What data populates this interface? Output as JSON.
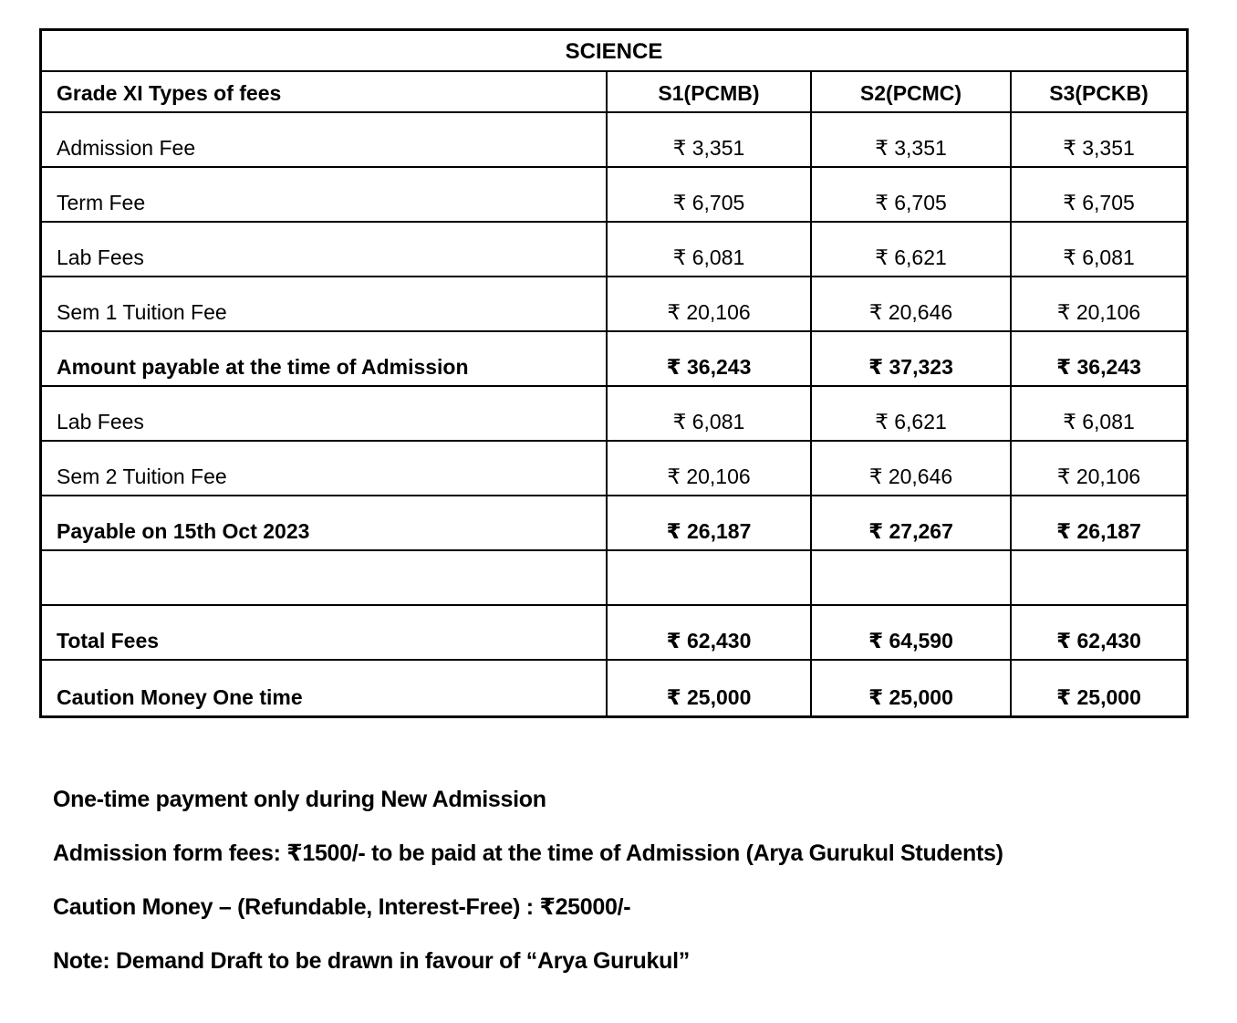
{
  "table": {
    "title": "SCIENCE",
    "columns": [
      "Grade XI Types of fees",
      "S1(PCMB)",
      "S2(PCMC)",
      "S3(PCKB)"
    ],
    "rows": [
      {
        "label": "Admission Fee",
        "values": [
          "₹ 3,351",
          "₹ 3,351",
          "₹ 3,351"
        ]
      },
      {
        "label": "Term Fee",
        "values": [
          "₹ 6,705",
          "₹ 6,705",
          "₹ 6,705"
        ]
      },
      {
        "label": "Lab Fees",
        "values": [
          "₹ 6,081",
          "₹ 6,621",
          "₹ 6,081"
        ]
      },
      {
        "label": "Sem 1 Tuition Fee",
        "values": [
          "₹ 20,106",
          "₹ 20,646",
          "₹ 20,106"
        ]
      },
      {
        "label": "Amount payable at the time of Admission",
        "values": [
          "₹ 36,243",
          "₹ 37,323",
          "₹ 36,243"
        ]
      },
      {
        "label": "Lab Fees",
        "values": [
          "₹ 6,081",
          "₹ 6,621",
          "₹ 6,081"
        ]
      },
      {
        "label": "Sem 2 Tuition Fee",
        "values": [
          "₹ 20,106",
          "₹ 20,646",
          "₹ 20,106"
        ]
      },
      {
        "label": "Payable on 15th Oct 2023",
        "values": [
          "₹ 26,187",
          "₹ 27,267",
          "₹ 26,187"
        ]
      },
      {
        "label": "",
        "values": [
          "",
          "",
          ""
        ]
      },
      {
        "label": "Total Fees",
        "values": [
          "₹ 62,430",
          "₹ 64,590",
          "₹ 62,430"
        ]
      },
      {
        "label": "Caution Money One time",
        "values": [
          "₹ 25,000",
          "₹ 25,000",
          "₹ 25,000"
        ]
      }
    ]
  },
  "notes": [
    "One-time payment only during New Admission",
    "Admission form fees: ₹1500/- to be paid at the time of Admission (Arya Gurukul Students)",
    "Caution Money – (Refundable, Interest-Free) : ₹25000/-",
    "Note: Demand Draft to be drawn in favour of “Arya Gurukul”"
  ]
}
